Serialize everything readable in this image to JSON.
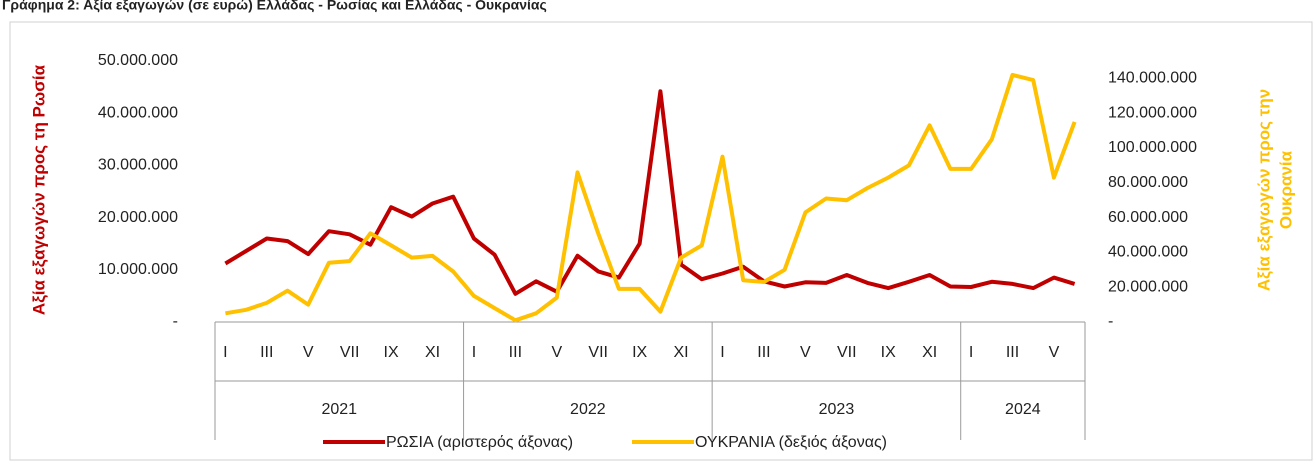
{
  "chart_data": {
    "type": "line",
    "title": "Γράφημα 2: Αξία εξαγωγών (σε ευρώ) Ελλάδας - Ρωσίας και Ελλάδας - Ουκρανίας",
    "y_label": "Αξία εξαγωγών προς τη Ρωσία",
    "y2_label": [
      "Αξία εξαγωγών προς την",
      "Ουκρανία"
    ],
    "categories": [
      "I",
      null,
      "III",
      null,
      "V",
      null,
      "VII",
      null,
      "IX",
      null,
      "XI",
      null,
      "I",
      null,
      "III",
      null,
      "V",
      null,
      "VII",
      null,
      "IX",
      null,
      "XI",
      null,
      "I",
      null,
      "III",
      null,
      "V",
      null,
      "VII",
      null,
      "IX",
      null,
      "XI",
      null,
      "I",
      null,
      "III",
      null,
      "V",
      null
    ],
    "groups": [
      {
        "label": "2021",
        "count": 12
      },
      {
        "label": "2022",
        "count": 12
      },
      {
        "label": "2023",
        "count": 12
      },
      {
        "label": "2024",
        "count": 6
      }
    ],
    "series": [
      {
        "name": "ΡΩΣΙΑ (αριστερός άξονας)",
        "color": "#c00000",
        "axis": "y",
        "values": [
          11200000,
          13600000,
          16000000,
          15500000,
          13000000,
          17400000,
          16800000,
          14800000,
          22000000,
          20200000,
          22700000,
          24000000,
          16000000,
          12900000,
          5400000,
          7800000,
          5800000,
          12700000,
          9700000,
          8500000,
          15000000,
          44200000,
          11000000,
          8200000,
          9300000,
          10600000,
          7800000,
          6800000,
          7600000,
          7500000,
          9000000,
          7500000,
          6500000,
          7700000,
          9000000,
          6800000,
          6700000,
          7700000,
          7300000,
          6500000,
          8500000,
          7300000
        ]
      },
      {
        "name": "ΟΥΚΡΑΝΙΑ (δεξιός άξονας)",
        "color": "#ffc000",
        "axis": "y2",
        "values": [
          5000000,
          7000000,
          11000000,
          18000000,
          10000000,
          34000000,
          35000000,
          51000000,
          44000000,
          37000000,
          38000000,
          29000000,
          15000000,
          8000000,
          1000000,
          5000000,
          14000000,
          86000000,
          51000000,
          19000000,
          19000000,
          6000000,
          37000000,
          44000000,
          95000000,
          24000000,
          23000000,
          30000000,
          63000000,
          71000000,
          70000000,
          77000000,
          83000000,
          90000000,
          113000000,
          88000000,
          88000000,
          105000000,
          142000000,
          139000000,
          83000000,
          115000000
        ]
      }
    ],
    "ylim": [
      0,
      50000000
    ],
    "yticks": [
      {
        "value": 0,
        "label": "-"
      },
      {
        "value": 10000000,
        "label": "10.000.000"
      },
      {
        "value": 20000000,
        "label": "20.000.000"
      },
      {
        "value": 30000000,
        "label": "30.000.000"
      },
      {
        "value": 40000000,
        "label": "40.000.000"
      },
      {
        "value": 50000000,
        "label": "50.000.000"
      }
    ],
    "y2lim": [
      0,
      150000000
    ],
    "y2ticks": [
      {
        "value": 0,
        "label": "-"
      },
      {
        "value": 20000000,
        "label": "20.000.000"
      },
      {
        "value": 40000000,
        "label": "40.000.000"
      },
      {
        "value": 60000000,
        "label": "60.000.000"
      },
      {
        "value": 80000000,
        "label": "80.000.000"
      },
      {
        "value": 100000000,
        "label": "100.000.000"
      },
      {
        "value": 120000000,
        "label": "120.000.000"
      },
      {
        "value": 140000000,
        "label": "140.000.000"
      }
    ],
    "grid": false,
    "legend": "bottom"
  }
}
